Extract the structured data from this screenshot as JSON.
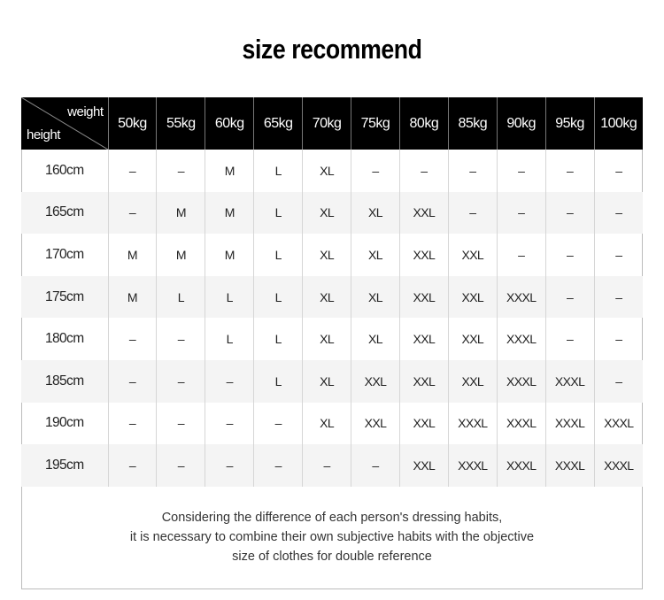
{
  "title": "size recommend",
  "table": {
    "corner_top": "weight",
    "corner_bottom": "height",
    "columns": [
      "50kg",
      "55kg",
      "60kg",
      "65kg",
      "70kg",
      "75kg",
      "80kg",
      "85kg",
      "90kg",
      "95kg",
      "100kg"
    ],
    "rows": [
      {
        "height": "160cm",
        "sizes": [
          "–",
          "–",
          "M",
          "L",
          "XL",
          "–",
          "–",
          "–",
          "–",
          "–",
          "–"
        ]
      },
      {
        "height": "165cm",
        "sizes": [
          "–",
          "M",
          "M",
          "L",
          "XL",
          "XL",
          "XXL",
          "–",
          "–",
          "–",
          "–"
        ]
      },
      {
        "height": "170cm",
        "sizes": [
          "M",
          "M",
          "M",
          "L",
          "XL",
          "XL",
          "XXL",
          "XXL",
          "–",
          "–",
          "–"
        ]
      },
      {
        "height": "175cm",
        "sizes": [
          "M",
          "L",
          "L",
          "L",
          "XL",
          "XL",
          "XXL",
          "XXL",
          "XXXL",
          "–",
          "–"
        ]
      },
      {
        "height": "180cm",
        "sizes": [
          "–",
          "–",
          "L",
          "L",
          "XL",
          "XL",
          "XXL",
          "XXL",
          "XXXL",
          "–",
          "–"
        ]
      },
      {
        "height": "185cm",
        "sizes": [
          "–",
          "–",
          "–",
          "L",
          "XL",
          "XXL",
          "XXL",
          "XXL",
          "XXXL",
          "XXXL",
          "–"
        ]
      },
      {
        "height": "190cm",
        "sizes": [
          "–",
          "–",
          "–",
          "–",
          "XL",
          "XXL",
          "XXL",
          "XXXL",
          "XXXL",
          "XXXL",
          "XXXL"
        ]
      },
      {
        "height": "195cm",
        "sizes": [
          "–",
          "–",
          "–",
          "–",
          "–",
          "–",
          "XXL",
          "XXXL",
          "XXXL",
          "XXXL",
          "XXXL"
        ]
      }
    ]
  },
  "note": [
    "Considering the difference of each person's dressing habits,",
    "it is necessary to combine their own subjective habits with the objective",
    "size of clothes for double reference"
  ]
}
